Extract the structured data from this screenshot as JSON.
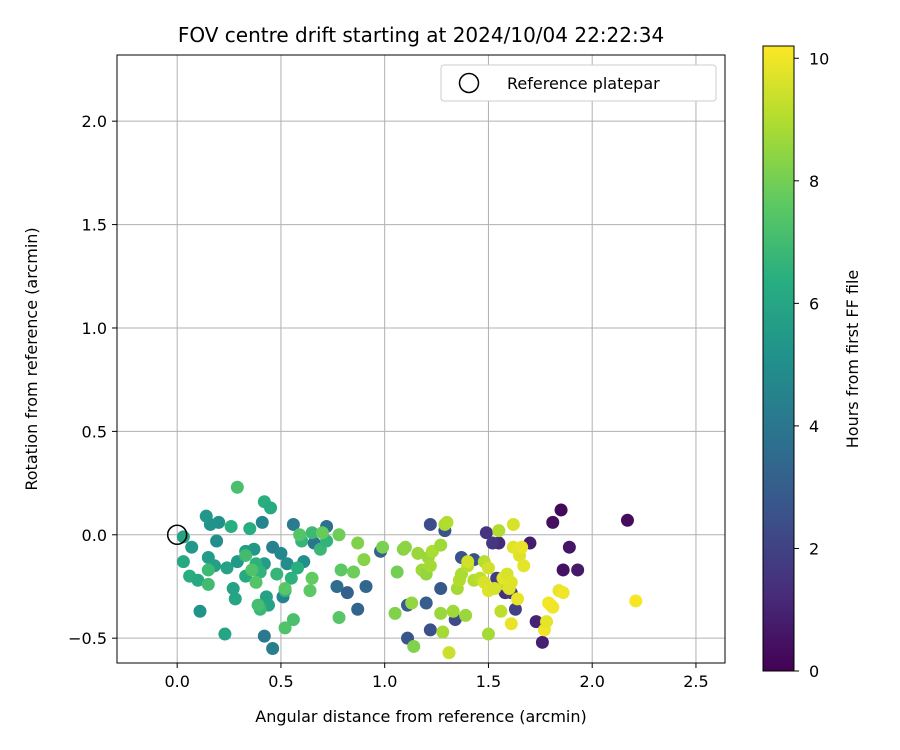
{
  "chart_data": {
    "type": "scatter",
    "title": "FOV centre drift starting at 2024/10/04 22:22:34",
    "xlabel": "Angular distance from reference (arcmin)",
    "ylabel": "Rotation from reference (arcmin)",
    "xlim": [
      -0.29,
      2.64
    ],
    "ylim": [
      -0.62,
      2.32
    ],
    "xticks": [
      0.0,
      0.5,
      1.0,
      1.5,
      2.0,
      2.5
    ],
    "xtick_labels": [
      "0.0",
      "0.5",
      "1.0",
      "1.5",
      "2.0",
      "2.5"
    ],
    "yticks": [
      -0.5,
      0.0,
      0.5,
      1.0,
      1.5,
      2.0
    ],
    "ytick_labels": [
      "−0.5",
      "0.0",
      "0.5",
      "1.0",
      "1.5",
      "2.0"
    ],
    "grid": true,
    "legend": {
      "placement": "upper-right",
      "entries": [
        "Reference platepar"
      ]
    },
    "reference_point": {
      "x": 0.0,
      "y": 0.0
    },
    "colorbar": {
      "label": "Hours from first FF file",
      "colormap": "viridis",
      "range": [
        0,
        10.2
      ],
      "ticks": [
        0,
        2,
        4,
        6,
        8,
        10
      ],
      "tick_labels": [
        "0",
        "2",
        "4",
        "6",
        "8",
        "10"
      ]
    },
    "points": [
      [
        1.85,
        0.12,
        0.2
      ],
      [
        2.17,
        0.07,
        0.3
      ],
      [
        1.81,
        0.06,
        0.4
      ],
      [
        1.89,
        -0.06,
        0.6
      ],
      [
        1.93,
        -0.17,
        0.7
      ],
      [
        1.86,
        -0.17,
        0.5
      ],
      [
        1.7,
        -0.04,
        0.8
      ],
      [
        1.73,
        -0.42,
        1.0
      ],
      [
        1.76,
        -0.52,
        0.9
      ],
      [
        1.55,
        -0.04,
        1.2
      ],
      [
        1.49,
        0.01,
        1.5
      ],
      [
        1.52,
        -0.04,
        1.6
      ],
      [
        1.54,
        -0.21,
        1.8
      ],
      [
        1.58,
        -0.28,
        1.4
      ],
      [
        1.61,
        -0.28,
        1.7
      ],
      [
        1.63,
        -0.36,
        2.0
      ],
      [
        1.22,
        0.05,
        2.4
      ],
      [
        1.37,
        -0.11,
        2.6
      ],
      [
        1.43,
        -0.12,
        2.5
      ],
      [
        1.27,
        -0.26,
        2.8
      ],
      [
        1.2,
        -0.33,
        3.0
      ],
      [
        1.11,
        -0.34,
        2.9
      ],
      [
        1.11,
        -0.5,
        2.7
      ],
      [
        1.22,
        -0.46,
        2.5
      ],
      [
        1.34,
        -0.41,
        2.3
      ],
      [
        1.29,
        0.02,
        2.6
      ],
      [
        0.98,
        -0.08,
        3.2
      ],
      [
        0.91,
        -0.25,
        3.4
      ],
      [
        0.87,
        -0.36,
        3.3
      ],
      [
        0.82,
        -0.28,
        3.1
      ],
      [
        0.77,
        -0.25,
        3.6
      ],
      [
        0.72,
        0.04,
        3.8
      ],
      [
        0.66,
        -0.04,
        4.0
      ],
      [
        0.56,
        0.05,
        4.2
      ],
      [
        0.46,
        -0.06,
        4.4
      ],
      [
        0.42,
        -0.49,
        4.1
      ],
      [
        0.46,
        -0.55,
        4.3
      ],
      [
        0.41,
        0.06,
        4.6
      ],
      [
        0.51,
        -0.3,
        4.5
      ],
      [
        0.5,
        -0.09,
        4.7
      ],
      [
        0.53,
        -0.14,
        4.9
      ],
      [
        0.61,
        -0.13,
        5.0
      ],
      [
        0.2,
        0.06,
        5.1
      ],
      [
        0.16,
        0.05,
        5.2
      ],
      [
        0.19,
        -0.03,
        5.0
      ],
      [
        0.14,
        0.09,
        5.3
      ],
      [
        0.07,
        -0.06,
        5.4
      ],
      [
        0.11,
        -0.37,
        5.2
      ],
      [
        0.15,
        -0.11,
        5.6
      ],
      [
        0.18,
        -0.15,
        5.7
      ],
      [
        0.24,
        -0.16,
        5.9
      ],
      [
        0.27,
        -0.26,
        5.8
      ],
      [
        0.28,
        -0.31,
        6.0
      ],
      [
        0.29,
        -0.13,
        5.5
      ],
      [
        0.33,
        -0.08,
        5.7
      ],
      [
        0.37,
        -0.07,
        5.4
      ],
      [
        0.42,
        -0.14,
        5.6
      ],
      [
        0.43,
        -0.3,
        5.8
      ],
      [
        0.44,
        -0.34,
        5.9
      ],
      [
        0.03,
        -0.01,
        5.9
      ],
      [
        0.03,
        -0.13,
        6.1
      ],
      [
        0.06,
        -0.2,
        6.3
      ],
      [
        0.1,
        -0.22,
        6.2
      ],
      [
        0.23,
        -0.48,
        6.0
      ],
      [
        0.26,
        0.04,
        6.4
      ],
      [
        0.33,
        -0.2,
        6.2
      ],
      [
        0.35,
        0.03,
        6.3
      ],
      [
        0.38,
        -0.14,
        6.5
      ],
      [
        0.4,
        -0.18,
        6.6
      ],
      [
        0.42,
        0.16,
        6.4
      ],
      [
        0.45,
        0.13,
        6.2
      ],
      [
        0.48,
        -0.19,
        6.7
      ],
      [
        0.52,
        -0.27,
        6.6
      ],
      [
        0.55,
        -0.21,
        6.5
      ],
      [
        0.58,
        -0.16,
        6.4
      ],
      [
        0.6,
        -0.03,
        6.7
      ],
      [
        0.65,
        0.01,
        6.9
      ],
      [
        0.69,
        -0.07,
        6.8
      ],
      [
        0.72,
        -0.03,
        6.6
      ],
      [
        0.4,
        -0.36,
        6.8
      ],
      [
        0.15,
        -0.17,
        6.9
      ],
      [
        0.15,
        -0.24,
        7.0
      ],
      [
        0.29,
        0.23,
        7.2
      ],
      [
        0.33,
        -0.1,
        7.0
      ],
      [
        0.36,
        -0.17,
        7.3
      ],
      [
        0.38,
        -0.23,
        7.4
      ],
      [
        0.39,
        -0.34,
        7.1
      ],
      [
        0.52,
        -0.26,
        7.5
      ],
      [
        0.52,
        -0.45,
        7.3
      ],
      [
        0.56,
        -0.41,
        7.2
      ],
      [
        0.59,
        0.0,
        7.4
      ],
      [
        0.64,
        -0.27,
        7.6
      ],
      [
        0.65,
        -0.21,
        7.7
      ],
      [
        0.7,
        0.01,
        7.8
      ],
      [
        0.78,
        0.0,
        7.9
      ],
      [
        0.78,
        -0.4,
        7.5
      ],
      [
        0.79,
        -0.17,
        7.6
      ],
      [
        0.85,
        -0.18,
        7.9
      ],
      [
        0.87,
        -0.04,
        8.2
      ],
      [
        0.9,
        -0.12,
        8.3
      ],
      [
        0.99,
        -0.06,
        8.1
      ],
      [
        1.05,
        -0.38,
        8.2
      ],
      [
        1.06,
        -0.18,
        8.0
      ],
      [
        1.09,
        -0.07,
        8.3
      ],
      [
        1.1,
        -0.06,
        8.4
      ],
      [
        1.13,
        -0.33,
        8.5
      ],
      [
        1.14,
        -0.54,
        8.2
      ],
      [
        1.16,
        -0.09,
        8.6
      ],
      [
        1.18,
        -0.17,
        8.7
      ],
      [
        1.2,
        -0.19,
        8.5
      ],
      [
        1.21,
        -0.11,
        8.6
      ],
      [
        1.22,
        -0.15,
        8.8
      ],
      [
        1.23,
        -0.08,
        8.9
      ],
      [
        1.27,
        -0.05,
        8.7
      ],
      [
        1.27,
        -0.38,
        8.6
      ],
      [
        1.28,
        -0.47,
        8.8
      ],
      [
        1.29,
        0.05,
        8.9
      ],
      [
        1.3,
        0.06,
        9.0
      ],
      [
        1.33,
        -0.37,
        8.7
      ],
      [
        1.35,
        -0.26,
        8.8
      ],
      [
        1.36,
        -0.22,
        9.0
      ],
      [
        1.37,
        -0.19,
        8.9
      ],
      [
        1.39,
        -0.39,
        8.6
      ],
      [
        1.4,
        -0.15,
        9.1
      ],
      [
        1.43,
        -0.22,
        9.0
      ],
      [
        1.46,
        -0.21,
        9.2
      ],
      [
        1.48,
        -0.13,
        9.1
      ],
      [
        1.5,
        -0.48,
        8.8
      ],
      [
        1.55,
        0.02,
        9.0
      ],
      [
        1.56,
        -0.37,
        9.2
      ],
      [
        1.58,
        -0.24,
        9.3
      ],
      [
        1.31,
        -0.57,
        9.4
      ],
      [
        1.4,
        -0.13,
        9.5
      ],
      [
        1.48,
        -0.23,
        9.6
      ],
      [
        1.5,
        -0.16,
        9.5
      ],
      [
        1.5,
        -0.27,
        9.7
      ],
      [
        1.53,
        -0.26,
        9.6
      ],
      [
        1.57,
        -0.21,
        9.8
      ],
      [
        1.6,
        -0.26,
        9.7
      ],
      [
        1.61,
        -0.43,
        9.9
      ],
      [
        1.62,
        0.05,
        9.6
      ],
      [
        1.62,
        -0.06,
        9.7
      ],
      [
        1.64,
        -0.07,
        9.8
      ],
      [
        1.64,
        -0.31,
        9.9
      ],
      [
        1.65,
        -0.1,
        9.7
      ],
      [
        1.67,
        -0.15,
        9.8
      ],
      [
        1.66,
        -0.06,
        9.9
      ],
      [
        1.77,
        -0.46,
        10.0
      ],
      [
        1.78,
        -0.42,
        9.8
      ],
      [
        1.79,
        -0.33,
        10.0
      ],
      [
        1.8,
        -0.34,
        10.1
      ],
      [
        1.81,
        -0.35,
        10.0
      ],
      [
        1.84,
        -0.27,
        9.9
      ],
      [
        1.86,
        -0.28,
        10.0
      ],
      [
        2.21,
        -0.32,
        10.1
      ],
      [
        1.59,
        -0.19,
        9.6
      ],
      [
        1.61,
        -0.23,
        9.7
      ]
    ]
  }
}
